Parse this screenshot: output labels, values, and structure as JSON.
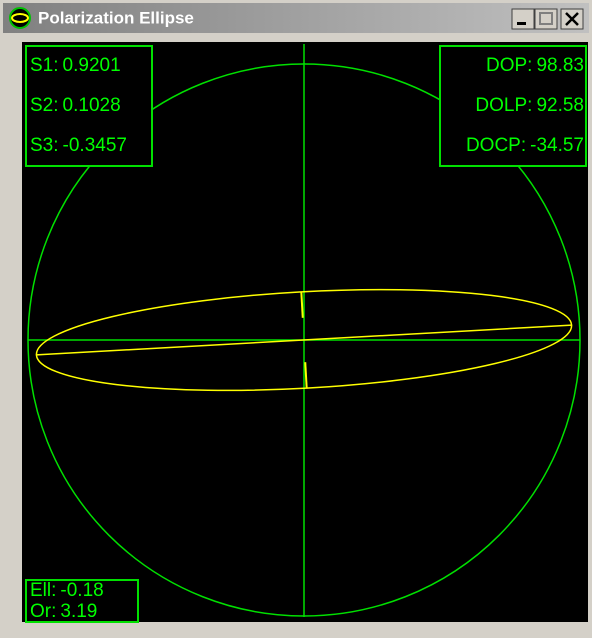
{
  "window": {
    "title": "Polarization Ellipse"
  },
  "stokes": [
    {
      "label": "S1:",
      "value": 0.9201
    },
    {
      "label": "S2:",
      "value": 0.1028
    },
    {
      "label": "S3:",
      "value": -0.3457
    }
  ],
  "degrees": [
    {
      "label": "DOP:",
      "value": 98.83
    },
    {
      "label": "DOLP:",
      "value": 92.58
    },
    {
      "label": "DOCP:",
      "value": -34.57
    }
  ],
  "ellipse": [
    {
      "label": "Ell:",
      "value": -0.18
    },
    {
      "label": "Or:",
      "value": 3.19
    }
  ]
}
